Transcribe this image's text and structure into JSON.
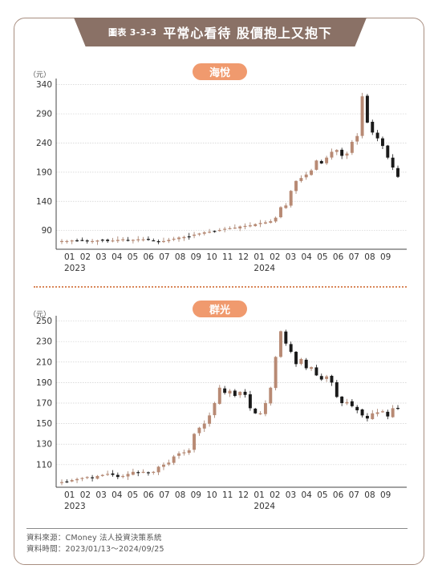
{
  "title": {
    "figure_no": "圖表 3-3-3",
    "text": "平常心看待 股價抱上又抱下"
  },
  "charts": [
    {
      "label": "海悅",
      "chart_data": {
        "type": "candlestick",
        "unit_label": "（元）",
        "ylim": [
          58,
          345
        ],
        "yticks": [
          90,
          140,
          190,
          240,
          290,
          340
        ],
        "xticks": [
          "01",
          "02",
          "03",
          "04",
          "05",
          "06",
          "07",
          "08",
          "09",
          "10",
          "11",
          "12",
          "01",
          "02",
          "03",
          "04",
          "05",
          "06",
          "07",
          "08",
          "09"
        ],
        "year_labels": [
          {
            "label": "2023",
            "at": 0
          },
          {
            "label": "2024",
            "at": 12
          }
        ],
        "closes": [
          72,
          72,
          73,
          73,
          73,
          72,
          72,
          73,
          73,
          72,
          73,
          74,
          75,
          74,
          74,
          75,
          75,
          74,
          73,
          71,
          72,
          74,
          76,
          78,
          79,
          80,
          83,
          85,
          87,
          88,
          89,
          91,
          93,
          94,
          95,
          97,
          98,
          99,
          101,
          103,
          104,
          106,
          112,
          130,
          133,
          158,
          175,
          180,
          186,
          193,
          210,
          205,
          215,
          225,
          228,
          218,
          222,
          242,
          252,
          320,
          275,
          258,
          248,
          235,
          215,
          198,
          182
        ]
      }
    },
    {
      "label": "群光",
      "chart_data": {
        "type": "candlestick",
        "unit_label": "（元）",
        "ylim": [
          88,
          252
        ],
        "yticks": [
          110,
          130,
          150,
          170,
          190,
          210,
          230,
          250
        ],
        "xticks": [
          "01",
          "02",
          "03",
          "04",
          "05",
          "06",
          "07",
          "08",
          "09",
          "10",
          "11",
          "12",
          "01",
          "02",
          "03",
          "04",
          "05",
          "06",
          "07",
          "08",
          "09"
        ],
        "year_labels": [
          {
            "label": "2023",
            "at": 0
          },
          {
            "label": "2024",
            "at": 12
          }
        ],
        "closes": [
          93,
          93,
          95,
          96,
          97,
          98,
          97,
          99,
          100,
          101,
          100,
          98,
          99,
          101,
          103,
          102,
          103,
          102,
          103,
          108,
          110,
          112,
          118,
          121,
          122,
          124,
          140,
          146,
          150,
          158,
          170,
          185,
          180,
          182,
          177,
          181,
          178,
          165,
          160,
          160,
          170,
          185,
          215,
          240,
          228,
          220,
          208,
          213,
          204,
          205,
          197,
          193,
          196,
          190,
          176,
          170,
          171,
          167,
          163,
          158,
          155,
          160,
          161,
          162,
          157,
          165,
          165
        ]
      }
    }
  ],
  "source": {
    "line1": "資料來源：CMoney 法人投資決策系統",
    "line2": "資料時間：2023/01/13～2024/09/25"
  }
}
